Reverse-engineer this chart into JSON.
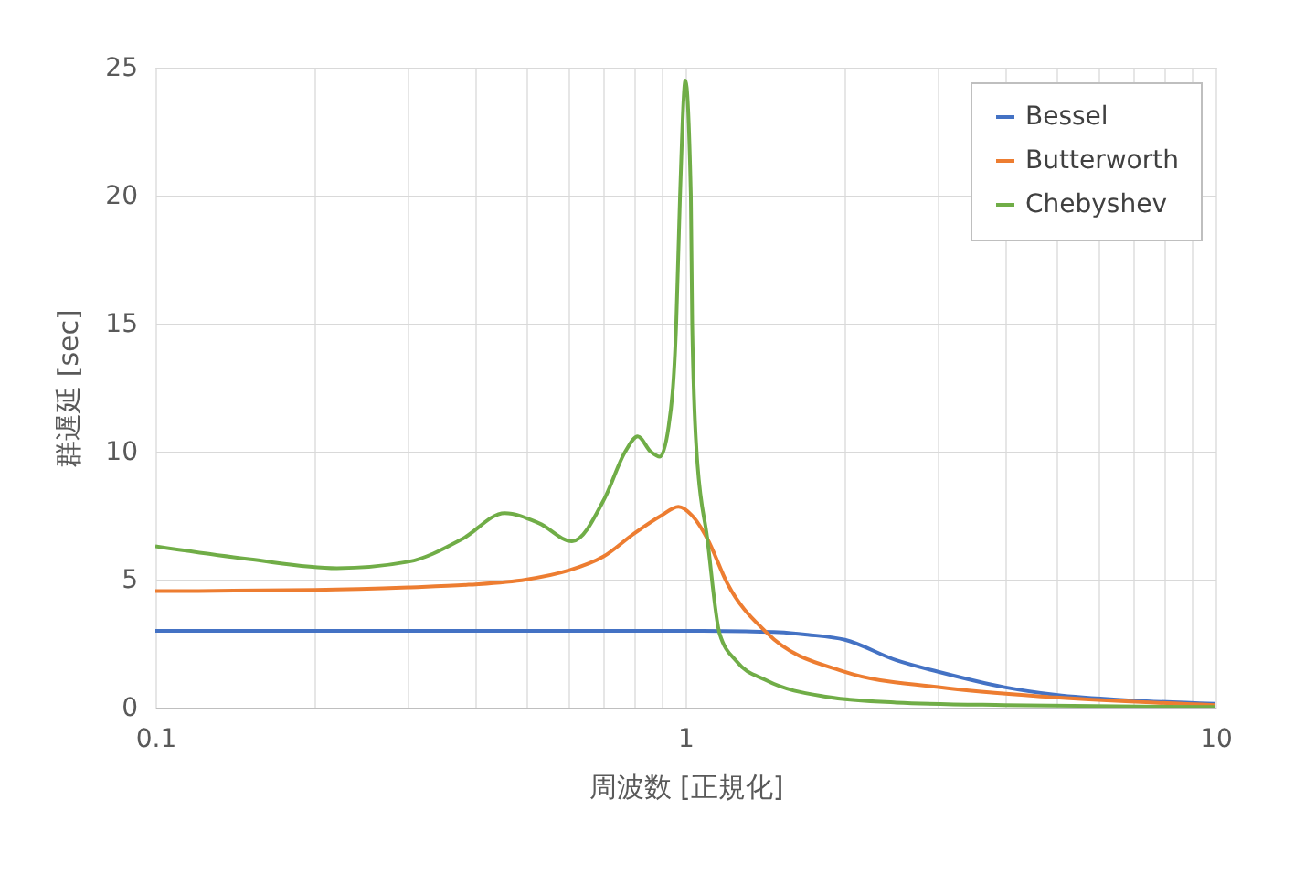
{
  "chart_data": {
    "type": "line",
    "xlabel": "周波数 [正規化]",
    "ylabel": "群遅延 [sec]",
    "log": "x",
    "xlim": [
      0.1,
      10
    ],
    "xticks": [
      0.1,
      {
        "value": 0.2,
        "label": null
      },
      {
        "value": 0.3,
        "label": null
      },
      {
        "value": 0.4,
        "label": null
      },
      {
        "value": 0.5,
        "label": null
      },
      {
        "value": 0.6,
        "label": null
      },
      {
        "value": 0.7,
        "label": null
      },
      {
        "value": 0.8,
        "label": null
      },
      {
        "value": 0.9,
        "label": null
      },
      1,
      {
        "value": 2,
        "label": null
      },
      {
        "value": 3,
        "label": null
      },
      {
        "value": 4,
        "label": null
      },
      {
        "value": 5,
        "label": null
      },
      {
        "value": 6,
        "label": null
      },
      {
        "value": 7,
        "label": null
      },
      {
        "value": 8,
        "label": null
      },
      {
        "value": 9,
        "label": null
      },
      10
    ],
    "ylim": [
      0,
      25
    ],
    "yticks": [
      0,
      5,
      10,
      15,
      20,
      25
    ],
    "grid": true,
    "legend": "top right",
    "marker": "none",
    "line_style": "solid",
    "series": [
      {
        "name": "Bessel",
        "color": "#4472c4",
        "x": [
          0.1,
          0.3,
          0.6,
          1.0,
          1.3,
          1.5,
          1.7,
          2.0,
          2.5,
          3.0,
          4.0,
          5.0,
          7.0,
          10.0
        ],
        "values": [
          3.0,
          3.0,
          3.0,
          3.0,
          2.98,
          2.95,
          2.85,
          2.65,
          1.85,
          1.4,
          0.8,
          0.5,
          0.28,
          0.15
        ]
      },
      {
        "name": "Butterworth",
        "color": "#ed7d31",
        "x": [
          0.1,
          0.2,
          0.3,
          0.39,
          0.5,
          0.6,
          0.7,
          0.8,
          0.9,
          0.97,
          1.03,
          1.1,
          1.2,
          1.42,
          2.0,
          3.0,
          5.0,
          10.0
        ],
        "values": [
          4.55,
          4.6,
          4.7,
          4.8,
          5.0,
          5.35,
          5.9,
          6.8,
          7.5,
          7.85,
          7.5,
          6.6,
          4.85,
          2.95,
          1.4,
          0.8,
          0.4,
          0.1
        ]
      },
      {
        "name": "Chebyshev",
        "color": "#70ad47",
        "x": [
          0.1,
          0.15,
          0.22,
          0.3,
          0.38,
          0.456,
          0.53,
          0.611,
          0.705,
          0.77,
          0.813,
          0.86,
          0.895,
          0.93,
          0.961,
          0.977,
          1.0,
          1.024,
          1.03,
          1.05,
          1.1,
          1.16,
          1.25,
          1.42,
          1.84,
          2.5,
          4.0,
          10.0
        ],
        "values": [
          6.3,
          5.8,
          5.45,
          5.7,
          6.6,
          7.6,
          7.2,
          6.5,
          8.2,
          10.0,
          10.6,
          10.0,
          9.8,
          11.0,
          15.0,
          20.0,
          24.5,
          20.0,
          15.0,
          10.0,
          6.6,
          2.9,
          1.8,
          1.07,
          0.43,
          0.2,
          0.1,
          0.03
        ]
      }
    ]
  }
}
